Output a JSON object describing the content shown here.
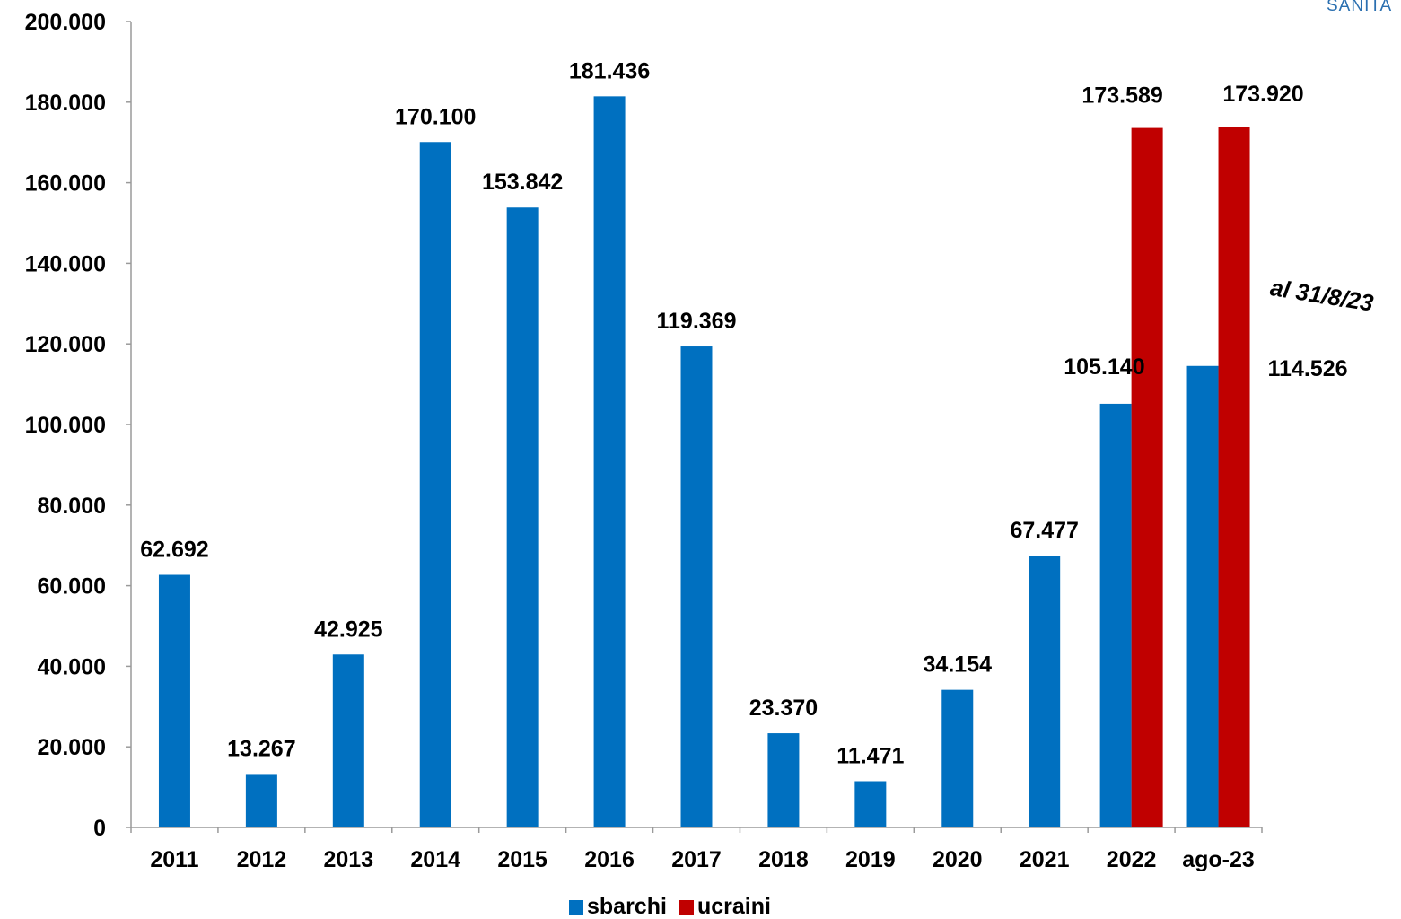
{
  "corner_text": "SANITA",
  "annotation": "al 31/8/23",
  "chart_data": {
    "type": "bar",
    "categories": [
      "2011",
      "2012",
      "2013",
      "2014",
      "2015",
      "2016",
      "2017",
      "2018",
      "2019",
      "2020",
      "2021",
      "2022",
      "ago-23"
    ],
    "series": [
      {
        "name": "sbarchi",
        "color": "#0070C0",
        "values": [
          62692,
          13267,
          42925,
          170100,
          153842,
          181436,
          119369,
          23370,
          11471,
          34154,
          67477,
          105140,
          114526
        ],
        "labels": [
          "62.692",
          "13.267",
          "42.925",
          "170.100",
          "153.842",
          "181.436",
          "119.369",
          "23.370",
          "11.471",
          "34.154",
          "67.477",
          "105.140",
          "114.526"
        ]
      },
      {
        "name": "ucraini",
        "color": "#C00000",
        "values": [
          null,
          null,
          null,
          null,
          null,
          null,
          null,
          null,
          null,
          null,
          null,
          173589,
          173920
        ],
        "labels": [
          "",
          "",
          "",
          "",
          "",
          "",
          "",
          "",
          "",
          "",
          "",
          "173.589",
          "173.920"
        ]
      }
    ],
    "yticks": [
      "0",
      "20.000",
      "40.000",
      "60.000",
      "80.000",
      "100.000",
      "120.000",
      "140.000",
      "160.000",
      "180.000",
      "200.000"
    ],
    "ylim": [
      0,
      200000
    ],
    "title": "",
    "xlabel": "",
    "ylabel": "",
    "legend_position": "bottom"
  }
}
